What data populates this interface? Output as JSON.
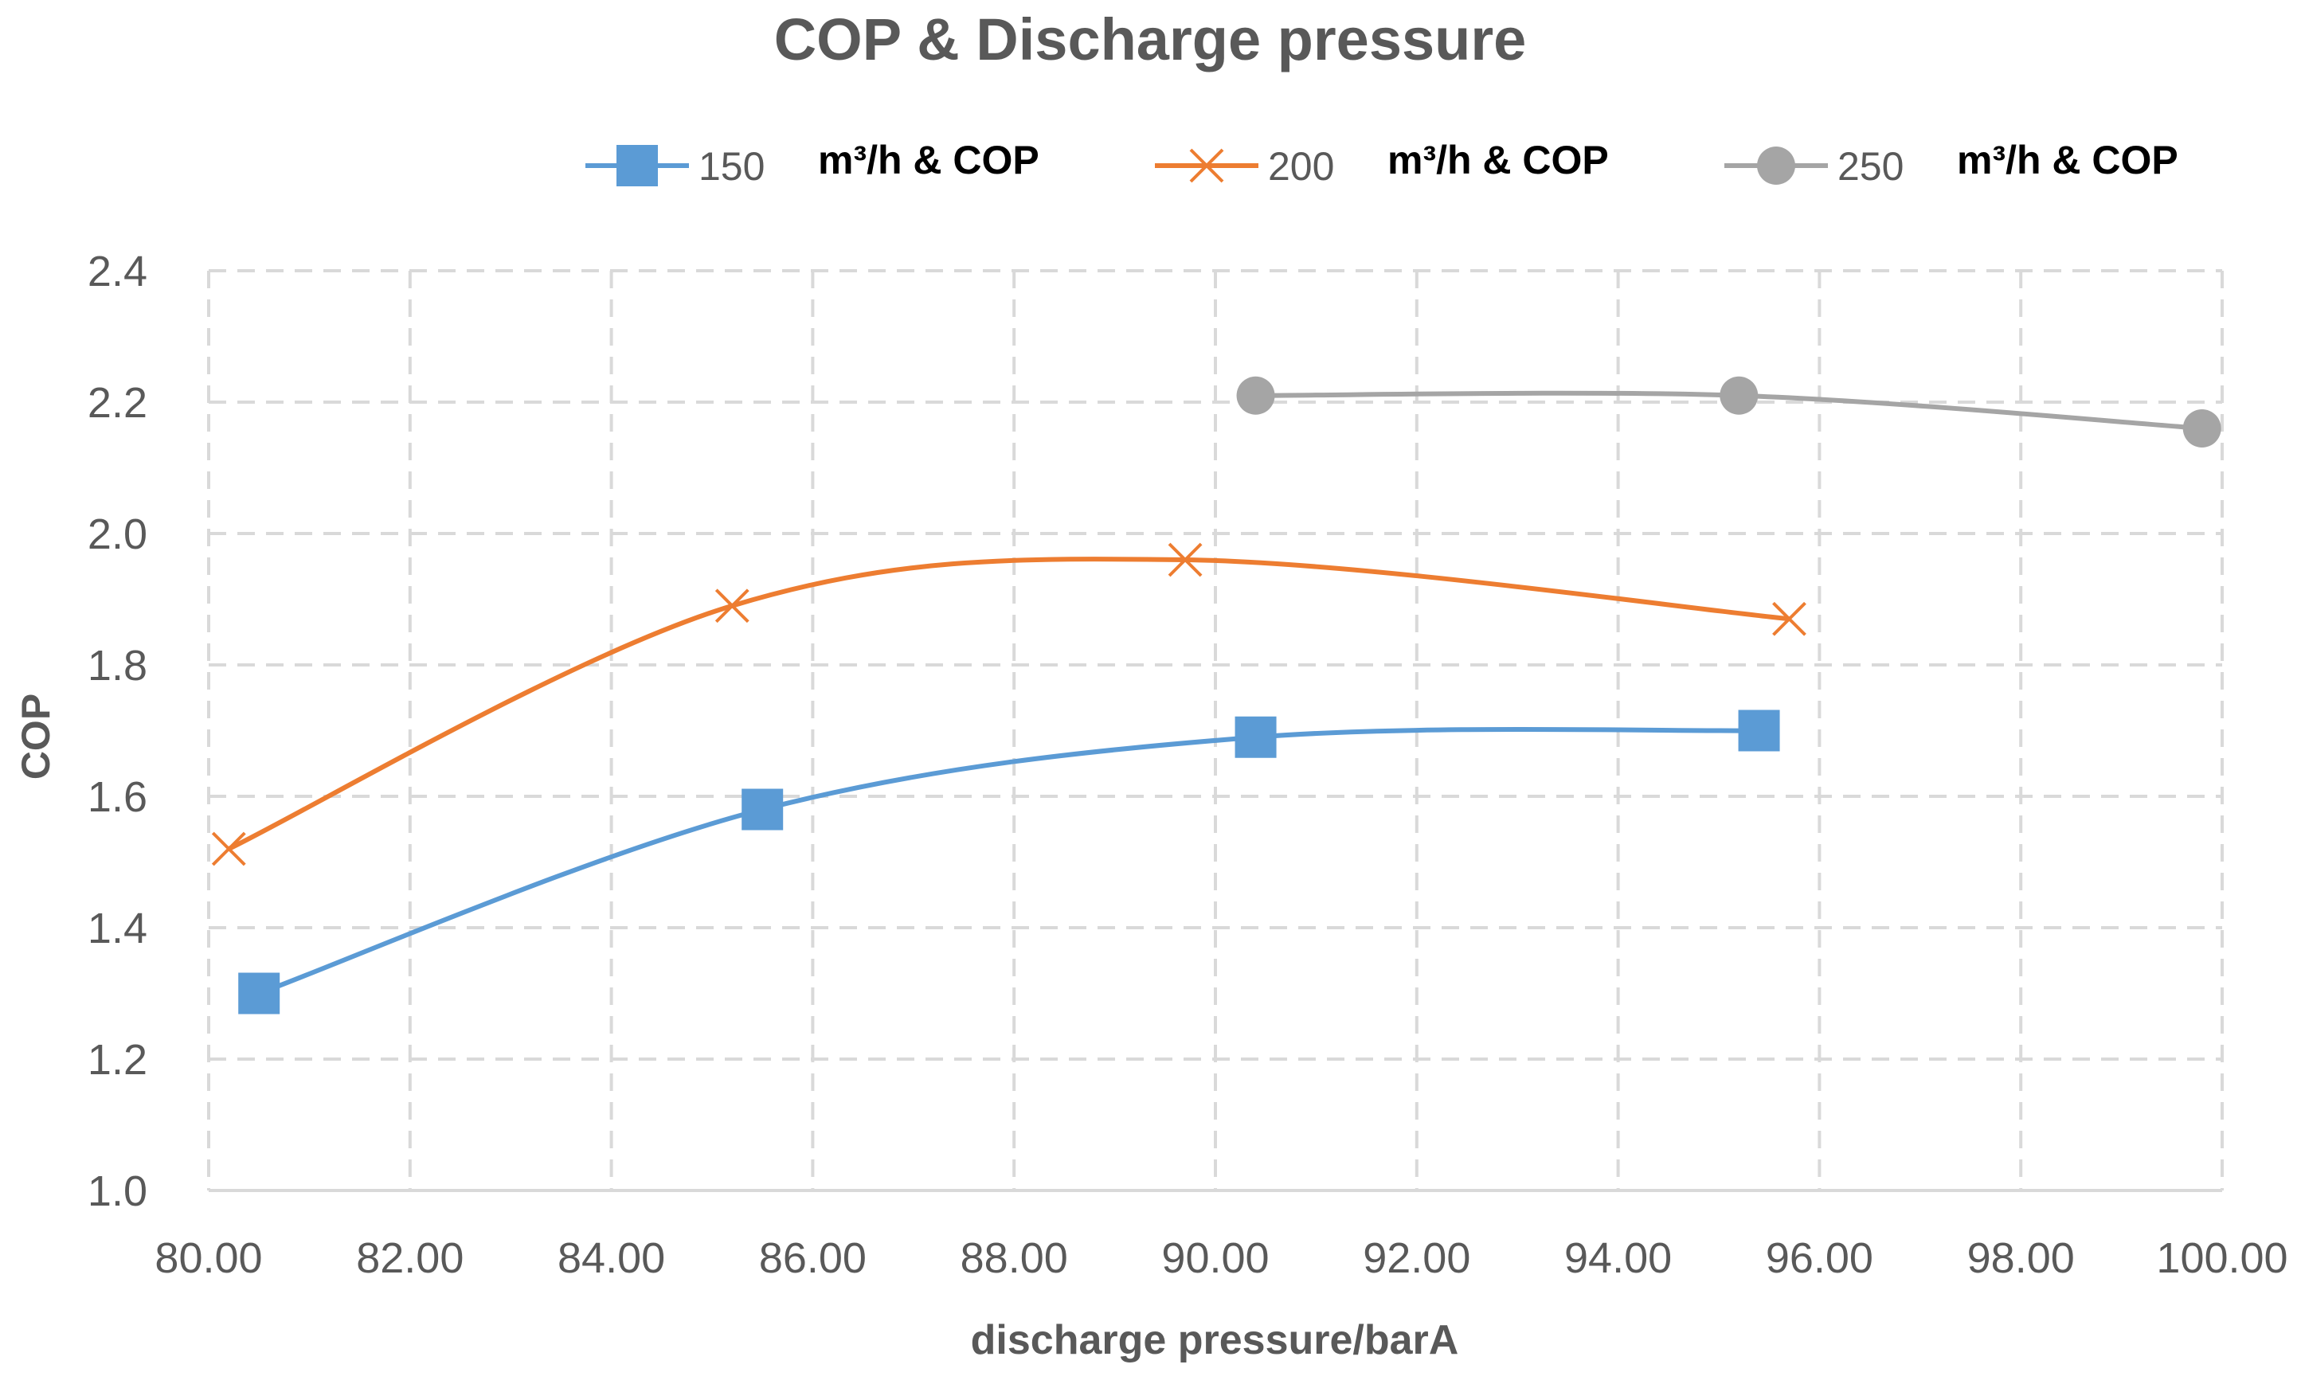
{
  "chart_data": {
    "type": "line",
    "title": "COP & Discharge pressure",
    "xlabel": "discharge pressure/barA",
    "ylabel": "COP",
    "xlim": [
      80.0,
      100.0
    ],
    "ylim": [
      1.0,
      2.4
    ],
    "x_ticks": [
      "80.00",
      "82.00",
      "84.00",
      "86.00",
      "88.00",
      "90.00",
      "92.00",
      "94.00",
      "96.00",
      "98.00",
      "100.00"
    ],
    "y_ticks": [
      "1.0",
      "1.2",
      "1.4",
      "1.6",
      "1.8",
      "2.0",
      "2.2",
      "2.4"
    ],
    "grid": true,
    "legend_position": "top",
    "series": [
      {
        "name": "150",
        "unit_label": "m³/h & COP",
        "color": "#5b9bd5",
        "marker": "square",
        "points": [
          {
            "x": 80.5,
            "y": 1.3
          },
          {
            "x": 85.5,
            "y": 1.58
          },
          {
            "x": 90.4,
            "y": 1.69
          },
          {
            "x": 95.4,
            "y": 1.7
          }
        ]
      },
      {
        "name": "200",
        "unit_label": "m³/h & COP",
        "color": "#ed7d31",
        "marker": "x",
        "points": [
          {
            "x": 80.2,
            "y": 1.52
          },
          {
            "x": 85.2,
            "y": 1.89
          },
          {
            "x": 89.7,
            "y": 1.96
          },
          {
            "x": 95.7,
            "y": 1.87
          }
        ]
      },
      {
        "name": "250",
        "unit_label": "m³/h & COP",
        "color": "#a5a5a5",
        "marker": "circle",
        "points": [
          {
            "x": 90.4,
            "y": 2.21
          },
          {
            "x": 95.2,
            "y": 2.21
          },
          {
            "x": 99.8,
            "y": 2.16
          }
        ]
      }
    ]
  }
}
